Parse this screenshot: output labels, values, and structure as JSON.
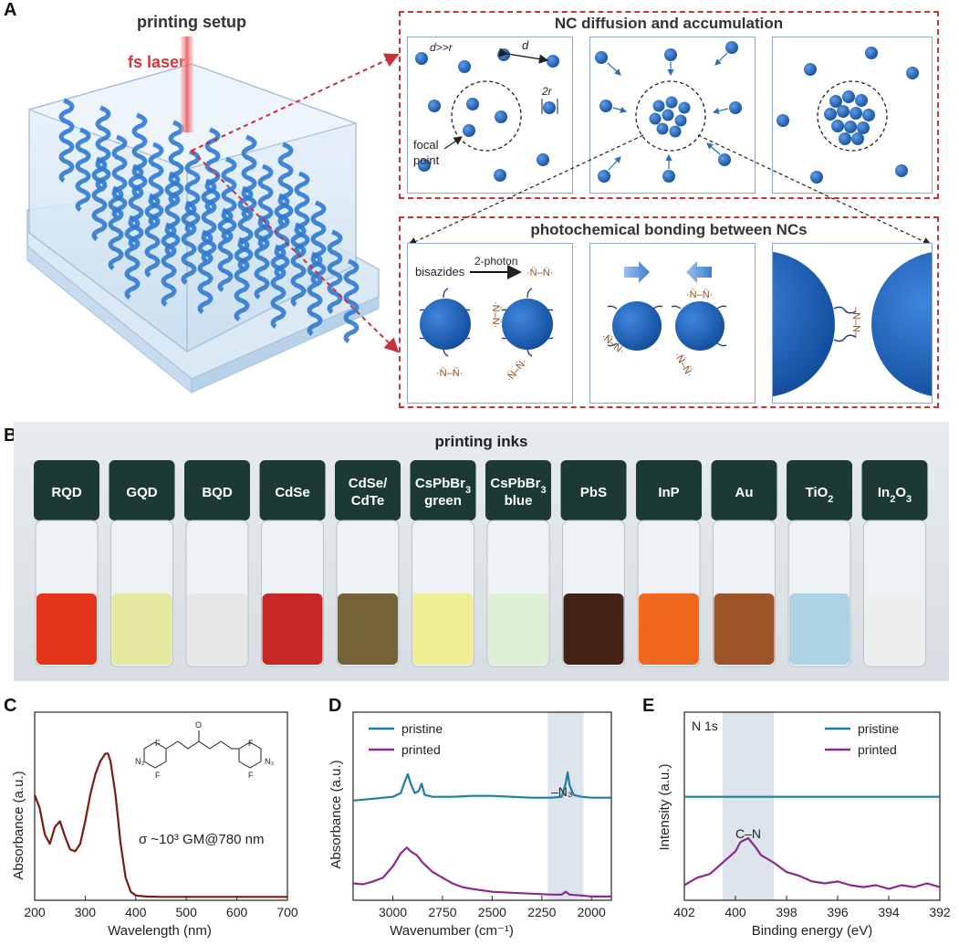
{
  "panel_a": {
    "letter": "A",
    "setup_title": "printing setup",
    "laser_label": "fs laser",
    "diffusion_title": "NC diffusion and accumulation",
    "bonding_title": "photochemical bonding between NCs",
    "labels": {
      "d_gg_r": "d>>r",
      "d": "d",
      "two_r": "2r",
      "focal_point": "focal\npoint",
      "focal_line1": "focal",
      "focal_line2": "point",
      "bisazides": "bisazides",
      "two_photon": "2-photon",
      "nitrene": "·N̈–N̈·"
    },
    "colors": {
      "nc_blue": "#1f62b8",
      "dash_red": "#c8323a",
      "nitrene_brown": "#8b4a1a"
    }
  },
  "panel_b": {
    "letter": "B",
    "title": "printing inks",
    "vials": [
      {
        "label_lines": [
          "RQD"
        ],
        "liquid": "#e12a10"
      },
      {
        "label_lines": [
          "GQD"
        ],
        "liquid": "#e6e79a"
      },
      {
        "label_lines": [
          "BQD"
        ],
        "liquid": "#e4e6e6"
      },
      {
        "label_lines": [
          "CdSe"
        ],
        "liquid": "#c61c1c"
      },
      {
        "label_lines": [
          "CdSe/",
          "CdTe"
        ],
        "liquid": "#6e5a2c"
      },
      {
        "label_lines": [
          "CsPbBr3",
          "green"
        ],
        "liquid": "#ecee8c"
      },
      {
        "label_lines": [
          "CsPbBr3",
          "blue"
        ],
        "liquid": "#dcefd2"
      },
      {
        "label_lines": [
          "PbS"
        ],
        "liquid": "#3a1608"
      },
      {
        "label_lines": [
          "InP"
        ],
        "liquid": "#f05f14"
      },
      {
        "label_lines": [
          "Au"
        ],
        "liquid": "#9a4a1c"
      },
      {
        "label_lines": [
          "TiO2"
        ],
        "liquid": "#a9d0e2"
      },
      {
        "label_lines": [
          "In2O3"
        ],
        "liquid": "#eceeee"
      }
    ]
  },
  "panel_c": {
    "letter": "C",
    "annotation": "σ ~10³ GM@780 nm",
    "molecule_labels": {
      "F": "F",
      "O": "O",
      "N3": "N₃"
    },
    "chart_data": {
      "type": "line",
      "xlabel": "Wavelength (nm)",
      "ylabel": "Absorbance (a.u.)",
      "xlim": [
        200,
        700
      ],
      "xticks": [
        200,
        300,
        400,
        500,
        600,
        700
      ],
      "ylim": [
        0,
        1
      ],
      "series": [
        {
          "color": "#7a1a10",
          "x": [
            200,
            210,
            220,
            230,
            240,
            250,
            260,
            270,
            280,
            290,
            300,
            310,
            320,
            330,
            340,
            345,
            350,
            360,
            370,
            380,
            390,
            400,
            420,
            450,
            500,
            600,
            700
          ],
          "y": [
            0.56,
            0.49,
            0.35,
            0.3,
            0.39,
            0.42,
            0.34,
            0.27,
            0.26,
            0.3,
            0.42,
            0.56,
            0.67,
            0.74,
            0.78,
            0.78,
            0.74,
            0.56,
            0.3,
            0.12,
            0.045,
            0.025,
            0.02,
            0.018,
            0.018,
            0.018,
            0.018
          ]
        }
      ]
    }
  },
  "panel_d": {
    "letter": "D",
    "annotation": "–N₃",
    "chart_data": {
      "type": "line",
      "xlabel": "Wavenumber (cm⁻¹)",
      "ylabel": "Absorbance (a.u.)",
      "xlim": [
        3200,
        1900
      ],
      "xticks": [
        3000,
        2750,
        2500,
        2250,
        2000
      ],
      "shaded_region": [
        2220,
        2040
      ],
      "legend": "top-left",
      "series": [
        {
          "name": "pristine",
          "color": "#1f7f9e",
          "x": [
            3200,
            3100,
            3000,
            2960,
            2940,
            2925,
            2910,
            2890,
            2870,
            2855,
            2840,
            2800,
            2700,
            2600,
            2500,
            2400,
            2300,
            2200,
            2150,
            2130,
            2120,
            2110,
            2090,
            2050,
            2000,
            1950,
            1900
          ],
          "y": [
            0.53,
            0.54,
            0.55,
            0.57,
            0.63,
            0.67,
            0.62,
            0.57,
            0.58,
            0.62,
            0.56,
            0.55,
            0.55,
            0.555,
            0.555,
            0.55,
            0.545,
            0.545,
            0.55,
            0.62,
            0.68,
            0.61,
            0.56,
            0.55,
            0.545,
            0.545,
            0.545
          ]
        },
        {
          "name": "printed",
          "color": "#8b2a8c",
          "x": [
            3200,
            3150,
            3100,
            3050,
            3000,
            2960,
            2930,
            2910,
            2880,
            2850,
            2800,
            2750,
            2700,
            2650,
            2600,
            2500,
            2400,
            2300,
            2200,
            2150,
            2130,
            2110,
            2050,
            2000,
            1950,
            1900
          ],
          "y": [
            0.09,
            0.085,
            0.1,
            0.12,
            0.18,
            0.25,
            0.28,
            0.26,
            0.24,
            0.2,
            0.15,
            0.12,
            0.09,
            0.07,
            0.06,
            0.045,
            0.04,
            0.035,
            0.03,
            0.03,
            0.045,
            0.03,
            0.025,
            0.02,
            0.02,
            0.02
          ]
        }
      ]
    }
  },
  "panel_e": {
    "letter": "E",
    "annotation_region": "N 1s",
    "annotation_peak": "C–N",
    "chart_data": {
      "type": "line",
      "xlabel": "Binding energy (eV)",
      "ylabel": "Intensity (a.u.)",
      "xlim": [
        402,
        392
      ],
      "xticks": [
        402,
        400,
        398,
        396,
        394,
        392
      ],
      "shaded_region": [
        400.5,
        398.5
      ],
      "legend": "top-right",
      "series": [
        {
          "name": "pristine",
          "color": "#1f7f9e",
          "x": [
            402,
            401,
            400,
            399,
            398,
            397,
            396,
            395,
            394,
            393,
            392
          ],
          "y": [
            0.55,
            0.55,
            0.55,
            0.55,
            0.55,
            0.55,
            0.55,
            0.55,
            0.55,
            0.55,
            0.55
          ]
        },
        {
          "name": "printed",
          "color": "#8b2a8c",
          "x": [
            402,
            401.5,
            401,
            400.5,
            400,
            399.8,
            399.5,
            399.2,
            399,
            398.5,
            398,
            397.5,
            397,
            396.5,
            396,
            395.5,
            395,
            394.5,
            394,
            393.5,
            393,
            392.5,
            392
          ],
          "y": [
            0.08,
            0.12,
            0.14,
            0.2,
            0.26,
            0.31,
            0.33,
            0.28,
            0.24,
            0.2,
            0.15,
            0.13,
            0.1,
            0.09,
            0.1,
            0.08,
            0.07,
            0.08,
            0.06,
            0.08,
            0.07,
            0.09,
            0.07
          ]
        }
      ]
    }
  }
}
